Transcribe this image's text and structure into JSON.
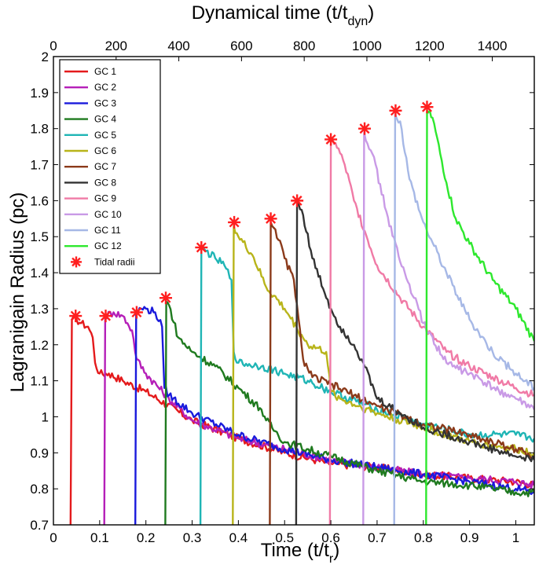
{
  "chart_data": {
    "type": "line",
    "title": "",
    "xlabel": "Time (t/t",
    "xlabel_sub": "r",
    "xlabel_close": ")",
    "x2label": "Dynamical time (t/t",
    "x2label_sub": "dyn",
    "x2label_close": ")",
    "ylabel": "Lagranigain Radius (pc)",
    "xlim": [
      0,
      1.04
    ],
    "ylim": [
      0.7,
      2.0
    ],
    "x2lim": [
      0,
      1534
    ],
    "xticks": [
      0,
      0.1,
      0.2,
      0.3,
      0.4,
      0.5,
      0.6,
      0.7,
      0.8,
      0.9,
      1
    ],
    "xtick_labels": [
      "0",
      "0.1",
      "0.2",
      "0.3",
      "0.4",
      "0.5",
      "0.6",
      "0.7",
      "0.8",
      "0.9",
      "1"
    ],
    "x2ticks": [
      0,
      200,
      400,
      600,
      800,
      1000,
      1200,
      1400
    ],
    "x2tick_labels": [
      "0",
      "200",
      "400",
      "600",
      "800",
      "1000",
      "1200",
      "1400"
    ],
    "yticks": [
      0.7,
      0.8,
      0.9,
      1.0,
      1.1,
      1.2,
      1.3,
      1.4,
      1.5,
      1.6,
      1.7,
      1.8,
      1.9,
      2.0
    ],
    "ytick_labels": [
      "0.7",
      "0.8",
      "0.9",
      "1",
      "1.1",
      "1.2",
      "1.3",
      "1.4",
      "1.5",
      "1.6",
      "1.7",
      "1.8",
      "1.9",
      "2"
    ],
    "legend_position": "top-left",
    "series": [
      {
        "name": "GC 1",
        "color": "#e41a1c",
        "x": [
          0.037,
          0.04,
          0.05,
          0.06,
          0.075,
          0.085,
          0.09,
          0.1,
          0.12,
          0.15,
          0.2,
          0.3,
          0.4,
          0.5,
          0.6,
          0.7,
          0.8,
          0.9,
          1.0,
          1.04
        ],
        "y": [
          0.7,
          1.27,
          1.27,
          1.26,
          1.25,
          1.22,
          1.15,
          1.12,
          1.12,
          1.1,
          1.07,
          0.99,
          0.94,
          0.9,
          0.87,
          0.86,
          0.84,
          0.83,
          0.82,
          0.81
        ]
      },
      {
        "name": "GC 2",
        "color": "#b51fb8",
        "x": [
          0.11,
          0.112,
          0.13,
          0.15,
          0.16,
          0.17,
          0.18,
          0.2,
          0.25,
          0.3,
          0.4,
          0.5,
          0.6,
          0.7,
          0.8,
          0.9,
          1.0,
          1.04
        ],
        "y": [
          0.7,
          1.28,
          1.29,
          1.28,
          1.26,
          1.24,
          1.16,
          1.12,
          1.05,
          0.99,
          0.94,
          0.91,
          0.88,
          0.86,
          0.84,
          0.83,
          0.82,
          0.81
        ]
      },
      {
        "name": "GC 3",
        "color": "#1a1adc",
        "x": [
          0.177,
          0.179,
          0.19,
          0.2,
          0.22,
          0.235,
          0.24,
          0.25,
          0.3,
          0.4,
          0.5,
          0.6,
          0.7,
          0.8,
          0.9,
          1.0,
          1.04
        ],
        "y": [
          0.7,
          1.29,
          1.3,
          1.3,
          1.29,
          1.25,
          1.08,
          1.06,
          1.01,
          0.95,
          0.91,
          0.88,
          0.86,
          0.84,
          0.82,
          0.8,
          0.79
        ]
      },
      {
        "name": "GC 4",
        "color": "#1f7a1f",
        "x": [
          0.242,
          0.244,
          0.25,
          0.27,
          0.3,
          0.35,
          0.4,
          0.45,
          0.46,
          0.48,
          0.5,
          0.6,
          0.7,
          0.8,
          0.9,
          1.0,
          1.04
        ],
        "y": [
          0.7,
          1.32,
          1.31,
          1.22,
          1.18,
          1.14,
          1.08,
          1.02,
          0.99,
          0.96,
          0.93,
          0.89,
          0.85,
          0.82,
          0.81,
          0.79,
          0.79
        ]
      },
      {
        "name": "GC 5",
        "color": "#1fb5b5",
        "x": [
          0.318,
          0.32,
          0.33,
          0.35,
          0.37,
          0.385,
          0.39,
          0.4,
          0.45,
          0.5,
          0.55,
          0.6,
          0.7,
          0.8,
          0.9,
          1.0,
          1.04
        ],
        "y": [
          0.7,
          1.47,
          1.46,
          1.44,
          1.42,
          1.38,
          1.18,
          1.15,
          1.14,
          1.12,
          1.1,
          1.07,
          1.02,
          0.98,
          0.95,
          0.95,
          0.94
        ]
      },
      {
        "name": "GC 6",
        "color": "#b8b41a",
        "x": [
          0.388,
          0.39,
          0.4,
          0.43,
          0.46,
          0.5,
          0.55,
          0.59,
          0.6,
          0.62,
          0.7,
          0.8,
          0.9,
          1.0,
          1.04
        ],
        "y": [
          0.7,
          1.53,
          1.5,
          1.45,
          1.36,
          1.3,
          1.2,
          1.18,
          1.07,
          1.05,
          1.01,
          0.97,
          0.93,
          0.91,
          0.9
        ]
      },
      {
        "name": "GC 7",
        "color": "#8b3a1a",
        "x": [
          0.468,
          0.47,
          0.48,
          0.5,
          0.52,
          0.54,
          0.56,
          0.6,
          0.65,
          0.7,
          0.8,
          0.9,
          1.0,
          1.04
        ],
        "y": [
          0.7,
          1.54,
          1.52,
          1.44,
          1.38,
          1.16,
          1.11,
          1.09,
          1.06,
          1.03,
          0.98,
          0.95,
          0.91,
          0.89
        ]
      },
      {
        "name": "GC 8",
        "color": "#333333",
        "x": [
          0.525,
          0.527,
          0.54,
          0.56,
          0.6,
          0.62,
          0.65,
          0.67,
          0.7,
          0.75,
          0.8,
          0.9,
          1.0,
          1.04
        ],
        "y": [
          0.7,
          1.6,
          1.56,
          1.44,
          1.3,
          1.25,
          1.2,
          1.15,
          1.05,
          1.01,
          0.97,
          0.93,
          0.89,
          0.88
        ]
      },
      {
        "name": "GC 9",
        "color": "#f07aa6",
        "x": [
          0.598,
          0.6,
          0.61,
          0.63,
          0.65,
          0.7,
          0.75,
          0.8,
          0.85,
          0.9,
          0.95,
          1.0,
          1.04
        ],
        "y": [
          0.7,
          1.77,
          1.76,
          1.7,
          1.6,
          1.42,
          1.33,
          1.25,
          1.18,
          1.14,
          1.11,
          1.08,
          1.06
        ]
      },
      {
        "name": "GC 10",
        "color": "#c99ae6",
        "x": [
          0.67,
          0.672,
          0.69,
          0.72,
          0.75,
          0.78,
          0.8,
          0.85,
          0.9,
          0.95,
          1.0,
          1.04
        ],
        "y": [
          0.7,
          1.79,
          1.73,
          1.57,
          1.43,
          1.33,
          1.26,
          1.15,
          1.12,
          1.08,
          1.05,
          1.02
        ]
      },
      {
        "name": "GC 11",
        "color": "#a6b8e6",
        "x": [
          0.737,
          0.739,
          0.75,
          0.77,
          0.8,
          0.85,
          0.9,
          0.95,
          1.0,
          1.04
        ],
        "y": [
          0.7,
          1.84,
          1.82,
          1.66,
          1.54,
          1.4,
          1.27,
          1.18,
          1.12,
          1.08
        ]
      },
      {
        "name": "GC 12",
        "color": "#2ee82e",
        "x": [
          0.806,
          0.808,
          0.82,
          0.85,
          0.87,
          0.9,
          0.95,
          1.0,
          1.04
        ],
        "y": [
          0.7,
          1.85,
          1.83,
          1.65,
          1.55,
          1.48,
          1.38,
          1.3,
          1.21
        ]
      }
    ],
    "tidal_radii": {
      "name": "Tidal radii",
      "color": "#ff1f1f",
      "x": [
        0.048,
        0.113,
        0.18,
        0.243,
        0.32,
        0.391,
        0.47,
        0.527,
        0.6,
        0.673,
        0.74,
        0.808
      ],
      "y": [
        1.28,
        1.28,
        1.29,
        1.33,
        1.47,
        1.54,
        1.55,
        1.6,
        1.77,
        1.8,
        1.85,
        1.86
      ]
    }
  }
}
